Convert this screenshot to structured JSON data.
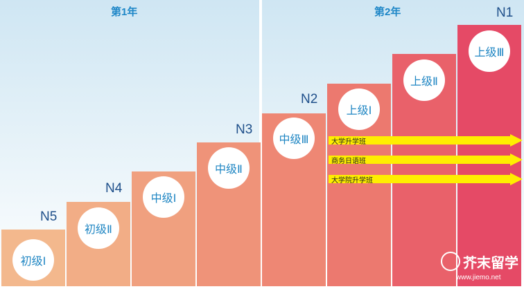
{
  "years": {
    "first": "第1年",
    "second": "第2年"
  },
  "steps": [
    {
      "level": "N5",
      "course": "初级Ⅰ",
      "color": "#f3b88d"
    },
    {
      "level": "N4",
      "course": "初级Ⅱ",
      "color": "#f2ad86"
    },
    {
      "level": "",
      "course": "中级Ⅰ",
      "color": "#f0a07f"
    },
    {
      "level": "N3",
      "course": "中级Ⅱ",
      "color": "#ef9379"
    },
    {
      "level": "N2",
      "course": "中级Ⅲ",
      "color": "#ee8774"
    },
    {
      "level": "",
      "course": "上级Ⅰ",
      "color": "#ec796f"
    },
    {
      "level": "",
      "course": "上级Ⅱ",
      "color": "#e9616a"
    },
    {
      "level": "N1",
      "course": "上级Ⅲ",
      "color": "#e54a66"
    }
  ],
  "tracks": [
    "大学升学班",
    "商务日语班",
    "大学院升学班"
  ],
  "arrow_color": "#ffee00",
  "brand": {
    "name": "芥末留学",
    "url": "www.jiemo.net"
  }
}
